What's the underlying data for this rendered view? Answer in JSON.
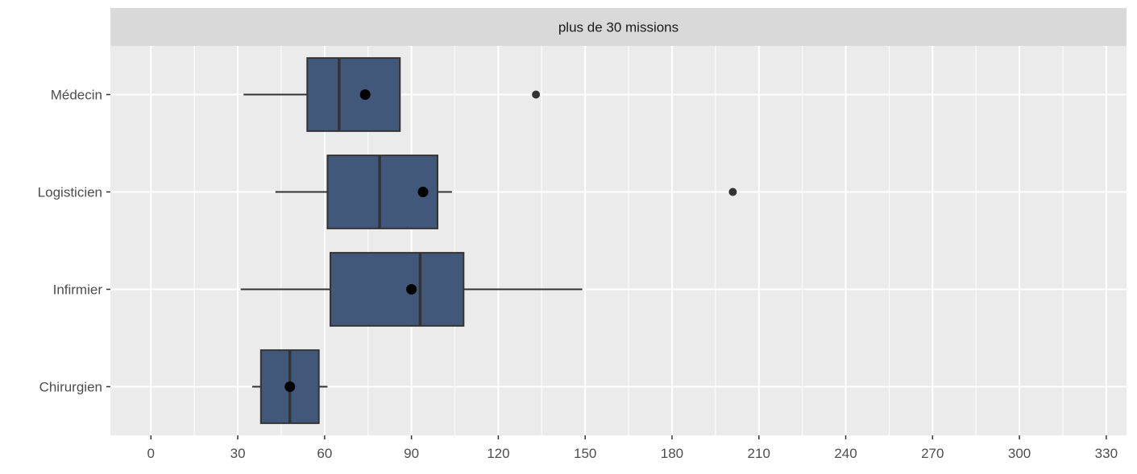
{
  "chart_data": {
    "type": "boxplot",
    "orientation": "horizontal",
    "facet_label": "plus de 30 missions",
    "title": "",
    "xlabel": "",
    "ylabel": "",
    "xlim": [
      -14,
      337
    ],
    "x_ticks": [
      0,
      30,
      60,
      90,
      120,
      150,
      180,
      210,
      240,
      270,
      300,
      330
    ],
    "x_tick_labels": [
      "0",
      "30",
      "60",
      "90",
      "120",
      "150",
      "180",
      "210",
      "240",
      "270",
      "300",
      "330"
    ],
    "grid": true,
    "legend": "none",
    "categories": [
      "Médecin",
      "Logisticien",
      "Infirmier",
      "Chirurgien"
    ],
    "boxes": [
      {
        "category": "Médecin",
        "whisker_low": 32,
        "q1": 54,
        "median": 65,
        "q3": 86,
        "whisker_high": 86,
        "mean": 74,
        "outliers": [
          133
        ]
      },
      {
        "category": "Logisticien",
        "whisker_low": 43,
        "q1": 61,
        "median": 79,
        "q3": 99,
        "whisker_high": 104,
        "mean": 94,
        "outliers": [
          201
        ]
      },
      {
        "category": "Infirmier",
        "whisker_low": 31,
        "q1": 62,
        "median": 93,
        "q3": 108,
        "whisker_high": 149,
        "mean": 90,
        "outliers": []
      },
      {
        "category": "Chirurgien",
        "whisker_low": 35,
        "q1": 38,
        "median": 48,
        "q3": 58,
        "whisker_high": 61,
        "mean": 48,
        "outliers": []
      }
    ],
    "colors": {
      "panel_bg": "#ebebeb",
      "strip_bg": "#d9d9d9",
      "grid": "#ffffff",
      "box_fill": "#42587a",
      "box_line": "#333333",
      "mean_point": "#000000",
      "outlier_point": "#333333",
      "tick_text": "#4d4d4d"
    }
  }
}
